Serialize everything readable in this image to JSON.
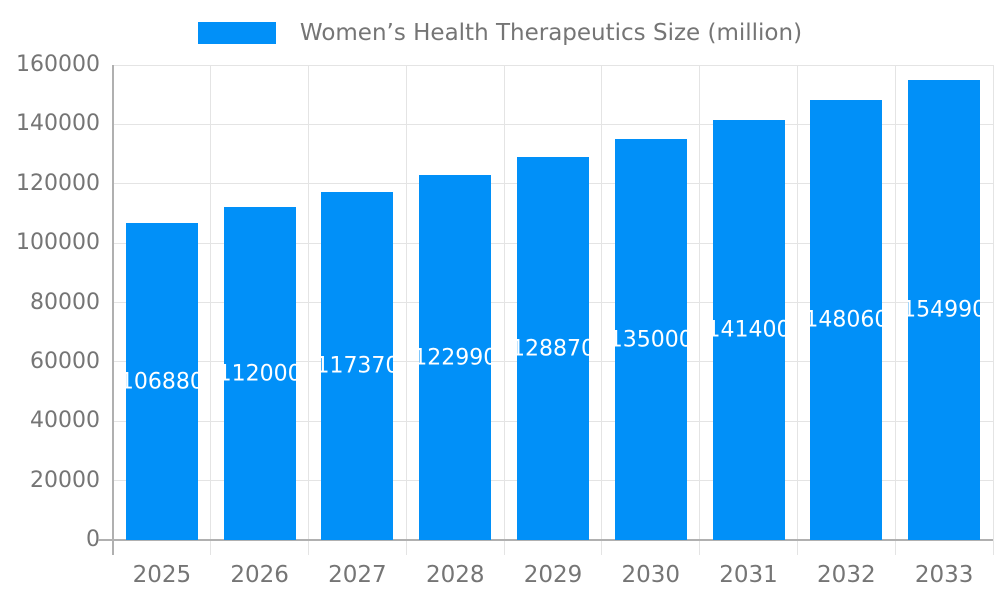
{
  "chart_data": {
    "type": "bar",
    "title": "",
    "legend": "Women’s Health Therapeutics Size (million)",
    "legend_position": "top",
    "categories": [
      "2025",
      "2026",
      "2027",
      "2028",
      "2029",
      "2030",
      "2031",
      "2032",
      "2033"
    ],
    "series": [
      {
        "name": "Women’s Health Therapeutics Size (million)",
        "values": [
          106880,
          112000,
          117370,
          122990,
          128870,
          135000,
          141400,
          148060,
          154990
        ]
      }
    ],
    "bar_value_labels": [
      "106880",
      "112000",
      "117370",
      "122990",
      "128870",
      "135000",
      "141400",
      "148060",
      "154990"
    ],
    "xlabel": "",
    "ylabel": "",
    "ylim": [
      0,
      160000
    ],
    "ytick_step": 20000,
    "ytick_labels": [
      "0",
      "20000",
      "40000",
      "60000",
      "80000",
      "100000",
      "120000",
      "140000",
      "160000"
    ],
    "grid": true,
    "colors": {
      "bar": "#0190f8",
      "bar_value_label": "#ffffff",
      "axis_label": "#757575",
      "grid_line": "#e4e4e4",
      "axis_line": "#b0b0b0",
      "background": "#ffffff"
    }
  }
}
